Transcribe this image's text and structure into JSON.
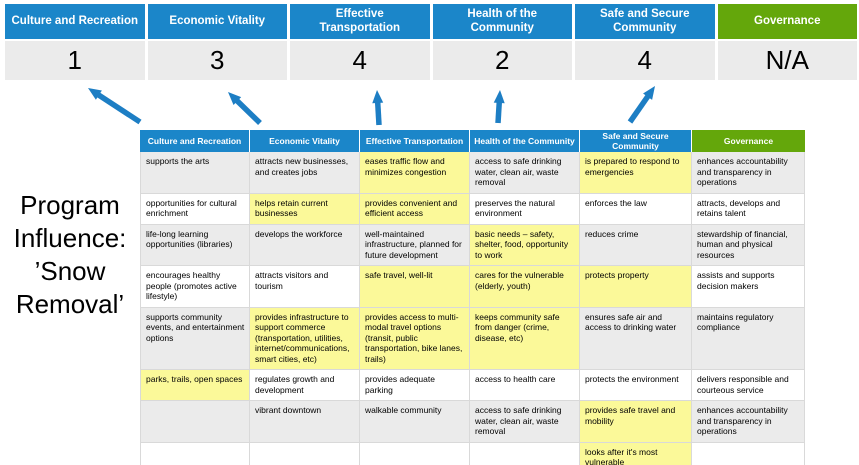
{
  "colors": {
    "header_blue": "#1b86c9",
    "governance_green": "#64a70b",
    "highlight_yellow": "#fbf999",
    "row_gray": "#ebebeb",
    "row_white": "#ffffff",
    "score_bg": "#ebebeb",
    "arrow_blue": "#1d7ec4",
    "grid_border": "#d9d9d9"
  },
  "program_label": {
    "text": "Program Influence: ’Snow Removal’",
    "lines": [
      "Program",
      "Influence:",
      "’Snow",
      "Removal’"
    ]
  },
  "summary": {
    "columns": [
      {
        "label": "Culture and Recreation",
        "score": "1"
      },
      {
        "label": "Economic Vitality",
        "score": "3"
      },
      {
        "label": "Effective Transportation",
        "score": "4"
      },
      {
        "label": "Health of the Community",
        "score": "2"
      },
      {
        "label": "Safe and Secure Community",
        "score": "4"
      },
      {
        "label": "Governance",
        "score": "N/A"
      }
    ]
  },
  "matrix": {
    "headers": [
      {
        "label": "Culture and Recreation",
        "theme": "blue"
      },
      {
        "label": "Economic Vitality",
        "theme": "blue"
      },
      {
        "label": "Effective Transportation",
        "theme": "blue"
      },
      {
        "label": "Health of the Community",
        "theme": "blue"
      },
      {
        "label": "Safe and Secure Community",
        "theme": "blue"
      },
      {
        "label": "Governance",
        "theme": "green"
      }
    ],
    "rows": [
      {
        "cells": [
          {
            "text": "supports the arts",
            "highlighted": false
          },
          {
            "text": "attracts new businesses, and creates jobs",
            "highlighted": false
          },
          {
            "text": "eases traffic flow and minimizes congestion",
            "highlighted": true
          },
          {
            "text": "access to safe drinking water, clean air, waste removal",
            "highlighted": false
          },
          {
            "text": "is prepared to respond to emergencies",
            "highlighted": true
          },
          {
            "text": "enhances accountability and transparency in operations",
            "highlighted": false
          }
        ]
      },
      {
        "cells": [
          {
            "text": "opportunities for cultural enrichment",
            "highlighted": false
          },
          {
            "text": "helps retain current businesses",
            "highlighted": true
          },
          {
            "text": "provides convenient and efficient access",
            "highlighted": true
          },
          {
            "text": "preserves the natural environment",
            "highlighted": false
          },
          {
            "text": "enforces the law",
            "highlighted": false
          },
          {
            "text": "attracts, develops and retains talent",
            "highlighted": false
          }
        ]
      },
      {
        "cells": [
          {
            "text": "life-long learning opportunities (libraries)",
            "highlighted": false
          },
          {
            "text": "develops the workforce",
            "highlighted": false
          },
          {
            "text": "well-maintained infrastructure, planned for future development",
            "highlighted": false
          },
          {
            "text": "basic needs – safety, shelter, food, opportunity to work",
            "highlighted": true
          },
          {
            "text": "reduces crime",
            "highlighted": false
          },
          {
            "text": "stewardship of financial, human and physical resources",
            "highlighted": false
          }
        ]
      },
      {
        "cells": [
          {
            "text": "encourages healthy people (promotes active lifestyle)",
            "highlighted": false
          },
          {
            "text": "attracts visitors and tourism",
            "highlighted": false
          },
          {
            "text": "safe travel, well-lit",
            "highlighted": true
          },
          {
            "text": "cares for the vulnerable (elderly, youth)",
            "highlighted": true
          },
          {
            "text": "protects property",
            "highlighted": true
          },
          {
            "text": "assists and supports decision makers",
            "highlighted": false
          }
        ]
      },
      {
        "cells": [
          {
            "text": "supports community events, and entertainment options",
            "highlighted": false
          },
          {
            "text": "provides infrastructure to support commerce (transportation, utilities, internet/communications, smart cities, etc)",
            "highlighted": true
          },
          {
            "text": "provides access to multi-modal travel options (transit, public transportation, bike lanes, trails)",
            "highlighted": true
          },
          {
            "text": "keeps community safe from danger (crime, disease, etc)",
            "highlighted": true
          },
          {
            "text": "ensures safe air and access to drinking water",
            "highlighted": false
          },
          {
            "text": "maintains regulatory compliance",
            "highlighted": false
          }
        ]
      },
      {
        "cells": [
          {
            "text": "parks, trails, open spaces",
            "highlighted": true
          },
          {
            "text": "regulates growth and development",
            "highlighted": false
          },
          {
            "text": "provides adequate parking",
            "highlighted": false
          },
          {
            "text": "access to health care",
            "highlighted": false
          },
          {
            "text": "protects the environment",
            "highlighted": false
          },
          {
            "text": "delivers responsible and courteous service",
            "highlighted": false
          }
        ]
      },
      {
        "cells": [
          {
            "text": "",
            "highlighted": false
          },
          {
            "text": "vibrant downtown",
            "highlighted": false
          },
          {
            "text": "walkable community",
            "highlighted": false
          },
          {
            "text": "access to safe drinking water, clean air, waste removal",
            "highlighted": false
          },
          {
            "text": "provides safe travel and mobility",
            "highlighted": true
          },
          {
            "text": "enhances accountability and transparency in operations",
            "highlighted": false
          }
        ]
      },
      {
        "cells": [
          {
            "text": "",
            "highlighted": false
          },
          {
            "text": "",
            "highlighted": false
          },
          {
            "text": "",
            "highlighted": false
          },
          {
            "text": "",
            "highlighted": false
          },
          {
            "text": "looks after it's most vulnerable",
            "highlighted": true
          },
          {
            "text": "",
            "highlighted": false
          }
        ]
      }
    ]
  }
}
